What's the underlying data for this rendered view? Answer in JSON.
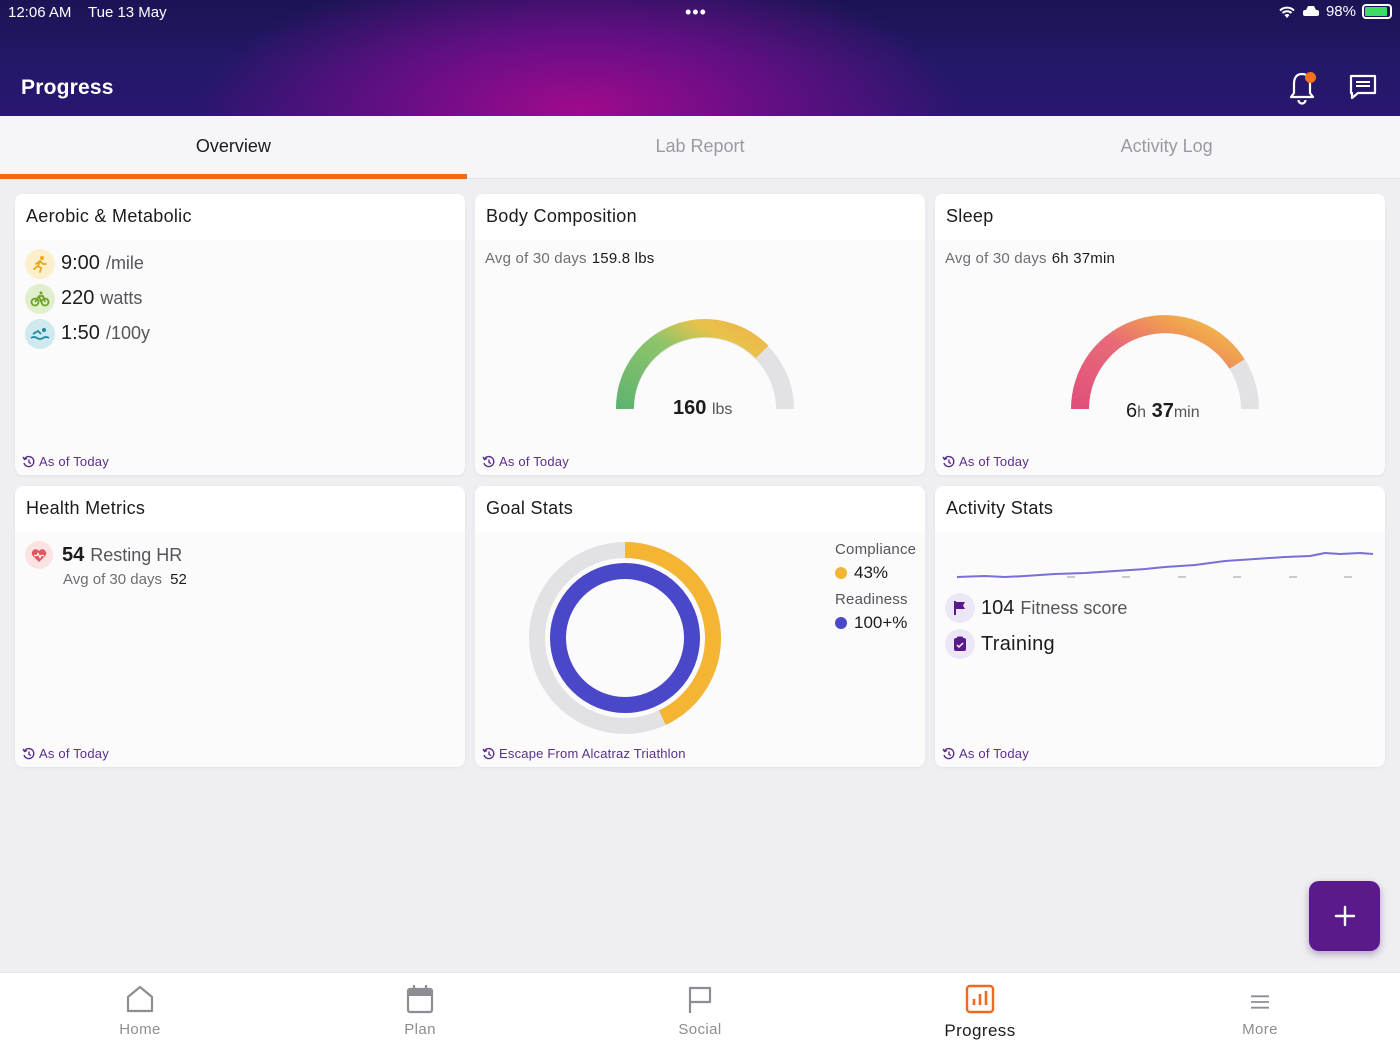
{
  "status_bar": {
    "time": "12:06 AM",
    "date": "Tue 13 May",
    "battery": "98%"
  },
  "header": {
    "title": "Progress"
  },
  "tabs": [
    {
      "label": "Overview",
      "active": true
    },
    {
      "label": "Lab Report",
      "active": false
    },
    {
      "label": "Activity Log",
      "active": false
    }
  ],
  "cards": {
    "aerobic": {
      "title": "Aerobic & Metabolic",
      "metrics": [
        {
          "icon": "run-icon",
          "value": "9:00",
          "unit": "/mile"
        },
        {
          "icon": "bike-icon",
          "value": "220",
          "unit": "watts"
        },
        {
          "icon": "swim-icon",
          "value": "1:50",
          "unit": "/100y"
        }
      ],
      "footer": "As of Today"
    },
    "body": {
      "title": "Body Composition",
      "avg_label": "Avg of 30 days",
      "avg_value": "159.8 lbs",
      "gauge_value": "160",
      "gauge_unit": "lbs",
      "footer": "As of Today"
    },
    "sleep": {
      "title": "Sleep",
      "avg_label": "Avg of 30 days",
      "avg_value": "6h 37min",
      "gauge_hours": "6",
      "gauge_h_unit": "h",
      "gauge_min": "37",
      "gauge_min_unit": "min",
      "footer": "As of Today"
    },
    "health": {
      "title": "Health Metrics",
      "hr_value": "54",
      "hr_label": "Resting HR",
      "avg_label": "Avg of 30 days",
      "avg_value": "52",
      "footer": "As of Today"
    },
    "goal": {
      "title": "Goal Stats",
      "compliance_label": "Compliance",
      "compliance_value": "43%",
      "compliance_pct": 43,
      "readiness_label": "Readiness",
      "readiness_value": "100+%",
      "readiness_pct": 100,
      "colors": {
        "compliance": "#f3b533",
        "readiness": "#4a47c8"
      },
      "footer": "Escape From Alcatraz Triathlon"
    },
    "activity": {
      "title": "Activity Stats",
      "fitness_value": "104",
      "fitness_label": "Fitness score",
      "training_label": "Training",
      "footer": "As of Today"
    }
  },
  "fab": {
    "icon": "plus-icon"
  },
  "bottom_nav": [
    {
      "label": "Home",
      "icon": "home-icon",
      "active": false
    },
    {
      "label": "Plan",
      "icon": "calendar-icon",
      "active": false
    },
    {
      "label": "Social",
      "icon": "flag-icon",
      "active": false
    },
    {
      "label": "Progress",
      "icon": "chart-icon",
      "active": true
    },
    {
      "label": "More",
      "icon": "menu-icon",
      "active": false
    }
  ],
  "colors": {
    "accent": "#ef6a1d",
    "brand": "#5a1a8c"
  }
}
